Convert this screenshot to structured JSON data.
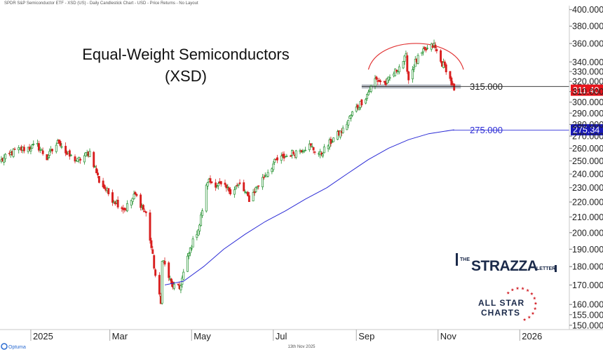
{
  "header": {
    "caption": "SPDR S&P Semiconductor ETF - XSD (US) - Daily Candlestick Chart - USD - Price Returns - No Layout"
  },
  "footer": {
    "brand": "Optuma",
    "date": "13th Nov 2025"
  },
  "logos": {
    "strazza_the": "THE",
    "strazza_main": "STRAZZA",
    "strazza_letter": "LETTER",
    "asc_line1": "ALL STAR",
    "asc_line2": "CHARTS"
  },
  "chart_data": {
    "type": "candlestick",
    "title": "Equal-Weight Semiconductors",
    "subtitle": "(XSD)",
    "ylim": [
      148,
      405
    ],
    "y_ticks": [
      150,
      155,
      160,
      170,
      180,
      190,
      200,
      210,
      220,
      230,
      240,
      250,
      260,
      270,
      280,
      290,
      300,
      310,
      320,
      330,
      340,
      360,
      380,
      400
    ],
    "x_ticks": [
      {
        "label": "2025",
        "date": "2025-01-01"
      },
      {
        "label": "Mar",
        "date": "2025-03-01"
      },
      {
        "label": "May",
        "date": "2025-05-01"
      },
      {
        "label": "Jul",
        "date": "2025-07-01"
      },
      {
        "label": "Sep",
        "date": "2025-09-01"
      },
      {
        "label": "Nov",
        "date": "2025-11-01"
      },
      {
        "label": "2026",
        "date": "2026-01-01"
      }
    ],
    "horizontal_lines": [
      {
        "value": 315,
        "label": "315.000",
        "color": "#222222"
      },
      {
        "value": 275,
        "label": "275.000",
        "color": "#2b2bd6"
      }
    ],
    "last_price_tags": [
      {
        "value": 311.4,
        "label": "311.40",
        "color": "#e8141c"
      },
      {
        "value": 275.34,
        "label": "275.34",
        "color": "#1a1ab8"
      }
    ],
    "price_path": [
      {
        "date": "2024-12-10",
        "close": 250
      },
      {
        "date": "2024-12-20",
        "close": 258
      },
      {
        "date": "2025-01-06",
        "close": 262
      },
      {
        "date": "2025-01-13",
        "close": 252
      },
      {
        "date": "2025-01-22",
        "close": 266
      },
      {
        "date": "2025-01-28",
        "close": 255
      },
      {
        "date": "2025-02-05",
        "close": 250
      },
      {
        "date": "2025-02-14",
        "close": 257
      },
      {
        "date": "2025-02-21",
        "close": 235
      },
      {
        "date": "2025-03-03",
        "close": 222
      },
      {
        "date": "2025-03-12",
        "close": 215
      },
      {
        "date": "2025-03-20",
        "close": 225
      },
      {
        "date": "2025-03-28",
        "close": 212
      },
      {
        "date": "2025-04-04",
        "close": 175
      },
      {
        "date": "2025-04-08",
        "close": 160
      },
      {
        "date": "2025-04-09",
        "close": 185
      },
      {
        "date": "2025-04-16",
        "close": 170
      },
      {
        "date": "2025-04-22",
        "close": 168
      },
      {
        "date": "2025-04-30",
        "close": 190
      },
      {
        "date": "2025-05-07",
        "close": 205
      },
      {
        "date": "2025-05-13",
        "close": 235
      },
      {
        "date": "2025-05-21",
        "close": 232
      },
      {
        "date": "2025-05-30",
        "close": 228
      },
      {
        "date": "2025-06-06",
        "close": 232
      },
      {
        "date": "2025-06-13",
        "close": 222
      },
      {
        "date": "2025-06-24",
        "close": 238
      },
      {
        "date": "2025-07-03",
        "close": 250
      },
      {
        "date": "2025-07-15",
        "close": 256
      },
      {
        "date": "2025-07-28",
        "close": 262
      },
      {
        "date": "2025-08-05",
        "close": 255
      },
      {
        "date": "2025-08-15",
        "close": 268
      },
      {
        "date": "2025-08-22",
        "close": 275
      },
      {
        "date": "2025-08-29",
        "close": 290
      },
      {
        "date": "2025-09-08",
        "close": 305
      },
      {
        "date": "2025-09-15",
        "close": 322
      },
      {
        "date": "2025-09-23",
        "close": 318
      },
      {
        "date": "2025-09-30",
        "close": 330
      },
      {
        "date": "2025-10-08",
        "close": 345
      },
      {
        "date": "2025-10-10",
        "close": 322
      },
      {
        "date": "2025-10-15",
        "close": 340
      },
      {
        "date": "2025-10-22",
        "close": 352
      },
      {
        "date": "2025-10-29",
        "close": 358
      },
      {
        "date": "2025-11-03",
        "close": 340
      },
      {
        "date": "2025-11-07",
        "close": 333
      },
      {
        "date": "2025-11-11",
        "close": 318
      },
      {
        "date": "2025-11-13",
        "close": 311.4
      }
    ],
    "moving_average": [
      {
        "date": "2025-04-11",
        "value": 170
      },
      {
        "date": "2025-04-25",
        "value": 172
      },
      {
        "date": "2025-05-10",
        "value": 180
      },
      {
        "date": "2025-05-25",
        "value": 190
      },
      {
        "date": "2025-06-10",
        "value": 199
      },
      {
        "date": "2025-06-25",
        "value": 207
      },
      {
        "date": "2025-07-10",
        "value": 214
      },
      {
        "date": "2025-07-25",
        "value": 222
      },
      {
        "date": "2025-08-10",
        "value": 230
      },
      {
        "date": "2025-08-25",
        "value": 240
      },
      {
        "date": "2025-09-10",
        "value": 251
      },
      {
        "date": "2025-09-25",
        "value": 260
      },
      {
        "date": "2025-10-10",
        "value": 267
      },
      {
        "date": "2025-10-25",
        "value": 272
      },
      {
        "date": "2025-11-13",
        "value": 275.34
      }
    ],
    "annotations": {
      "arc": {
        "start_date": "2025-09-10",
        "end_date": "2025-11-20",
        "base": 332,
        "peak": 362,
        "color": "#e03030"
      },
      "support_band": {
        "start_date": "2025-09-05",
        "end_date": "2025-11-18",
        "low": 313,
        "high": 317,
        "color": "#aab0ba"
      }
    }
  }
}
